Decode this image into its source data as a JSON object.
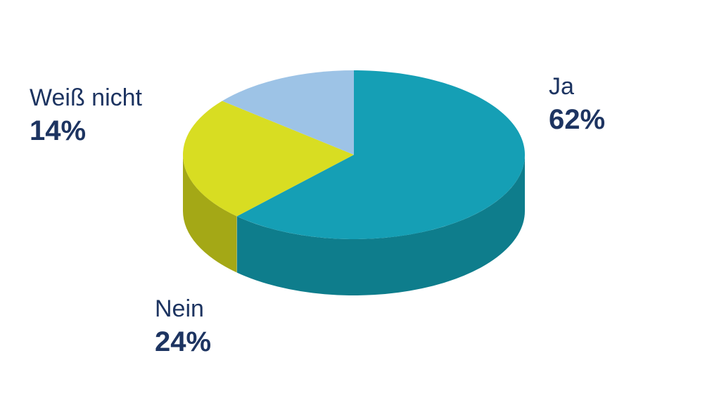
{
  "chart_data": {
    "type": "pie",
    "style": "3d",
    "slices": [
      {
        "name": "Ja",
        "label": "62%",
        "value": 62,
        "top_color": "#159fb5",
        "side_color": "#0e7d8c"
      },
      {
        "name": "Nein",
        "label": "24%",
        "value": 24,
        "top_color": "#d8dd22",
        "side_color": "#a4a816"
      },
      {
        "name": "Weiß nicht",
        "label": "14%",
        "value": 14,
        "top_color": "#9dc3e6",
        "side_color": "#7ea4c8"
      }
    ]
  }
}
